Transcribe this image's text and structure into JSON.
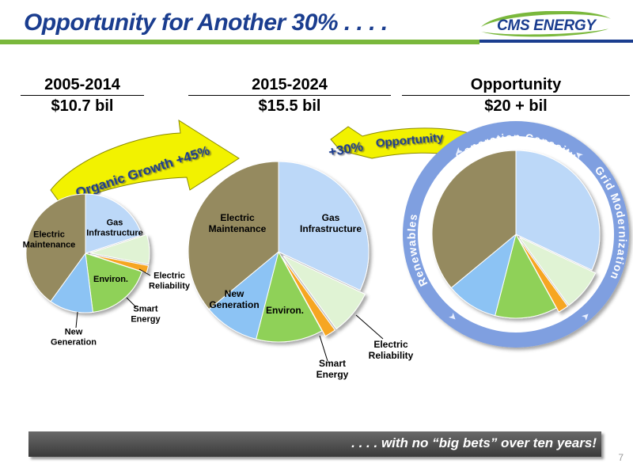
{
  "slide": {
    "title": "Opportunity for Another 30% . . . .",
    "logo_text": "CMS ENERGY",
    "footer_text": ". . . .  with no “big bets” over ten years!",
    "page_number": "7"
  },
  "columns": [
    {
      "period": "2005-2014",
      "amount": "$10.7 bil"
    },
    {
      "period": "2015-2024",
      "amount": "$15.5 bil"
    },
    {
      "period": "Opportunity",
      "amount": "$20 + bil"
    }
  ],
  "arrows": {
    "organic_growth": "Organic Growth  +45%",
    "plus30": "+30%",
    "opportunity": "Opportunity"
  },
  "ring_labels": {
    "top": "Generation  Capacity",
    "left": "Renewables",
    "right": "Grid  Modernization"
  },
  "colors": {
    "electric_maintenance": "#958a5e",
    "gas_infrastructure": "#bcd8f8",
    "electric_reliability": "#e0f3d4",
    "smart_energy": "#f6a623",
    "environ": "#8fd158",
    "new_generation": "#8cc3f4",
    "ring": "#7f9fe0",
    "arrow": "#f2f200",
    "title": "#1a3d8f"
  },
  "chart_data": [
    {
      "type": "pie",
      "title": "2005-2014",
      "subtitle": "$10.7 bil",
      "categories": [
        "Electric Maintenance",
        "Gas Infrastructure",
        "Electric Reliability",
        "Smart Energy",
        "Environ.",
        "New Generation"
      ],
      "values": [
        40,
        20,
        8,
        2,
        18,
        12
      ]
    },
    {
      "type": "pie",
      "title": "2015-2024",
      "subtitle": "$15.5 bil",
      "categories": [
        "Electric Maintenance",
        "Gas Infrastructure",
        "Electric Reliability",
        "Smart Energy",
        "Environ.",
        "New Generation"
      ],
      "values": [
        36,
        32,
        8,
        2,
        12,
        10
      ]
    },
    {
      "type": "pie",
      "title": "Opportunity",
      "subtitle": "$20 + bil",
      "categories": [
        "",
        "",
        "",
        "",
        "",
        ""
      ],
      "values": [
        36,
        32,
        8,
        2,
        12,
        10
      ]
    }
  ],
  "pie_labels": {
    "p1": {
      "electric_maintenance": "Electric\nMaintenance",
      "gas_infrastructure": "Gas\nInfrastructure",
      "electric_reliability": "Electric\nReliability",
      "smart_energy": "Smart\nEnergy",
      "environ": "Environ.",
      "new_generation": "New\nGeneration"
    },
    "p2": {
      "electric_maintenance": "Electric\nMaintenance",
      "gas_infrastructure": "Gas\nInfrastructure",
      "electric_reliability": "Electric\nReliability",
      "smart_energy": "Smart\nEnergy",
      "environ": "Environ.",
      "new_generation": "New\nGeneration"
    }
  }
}
